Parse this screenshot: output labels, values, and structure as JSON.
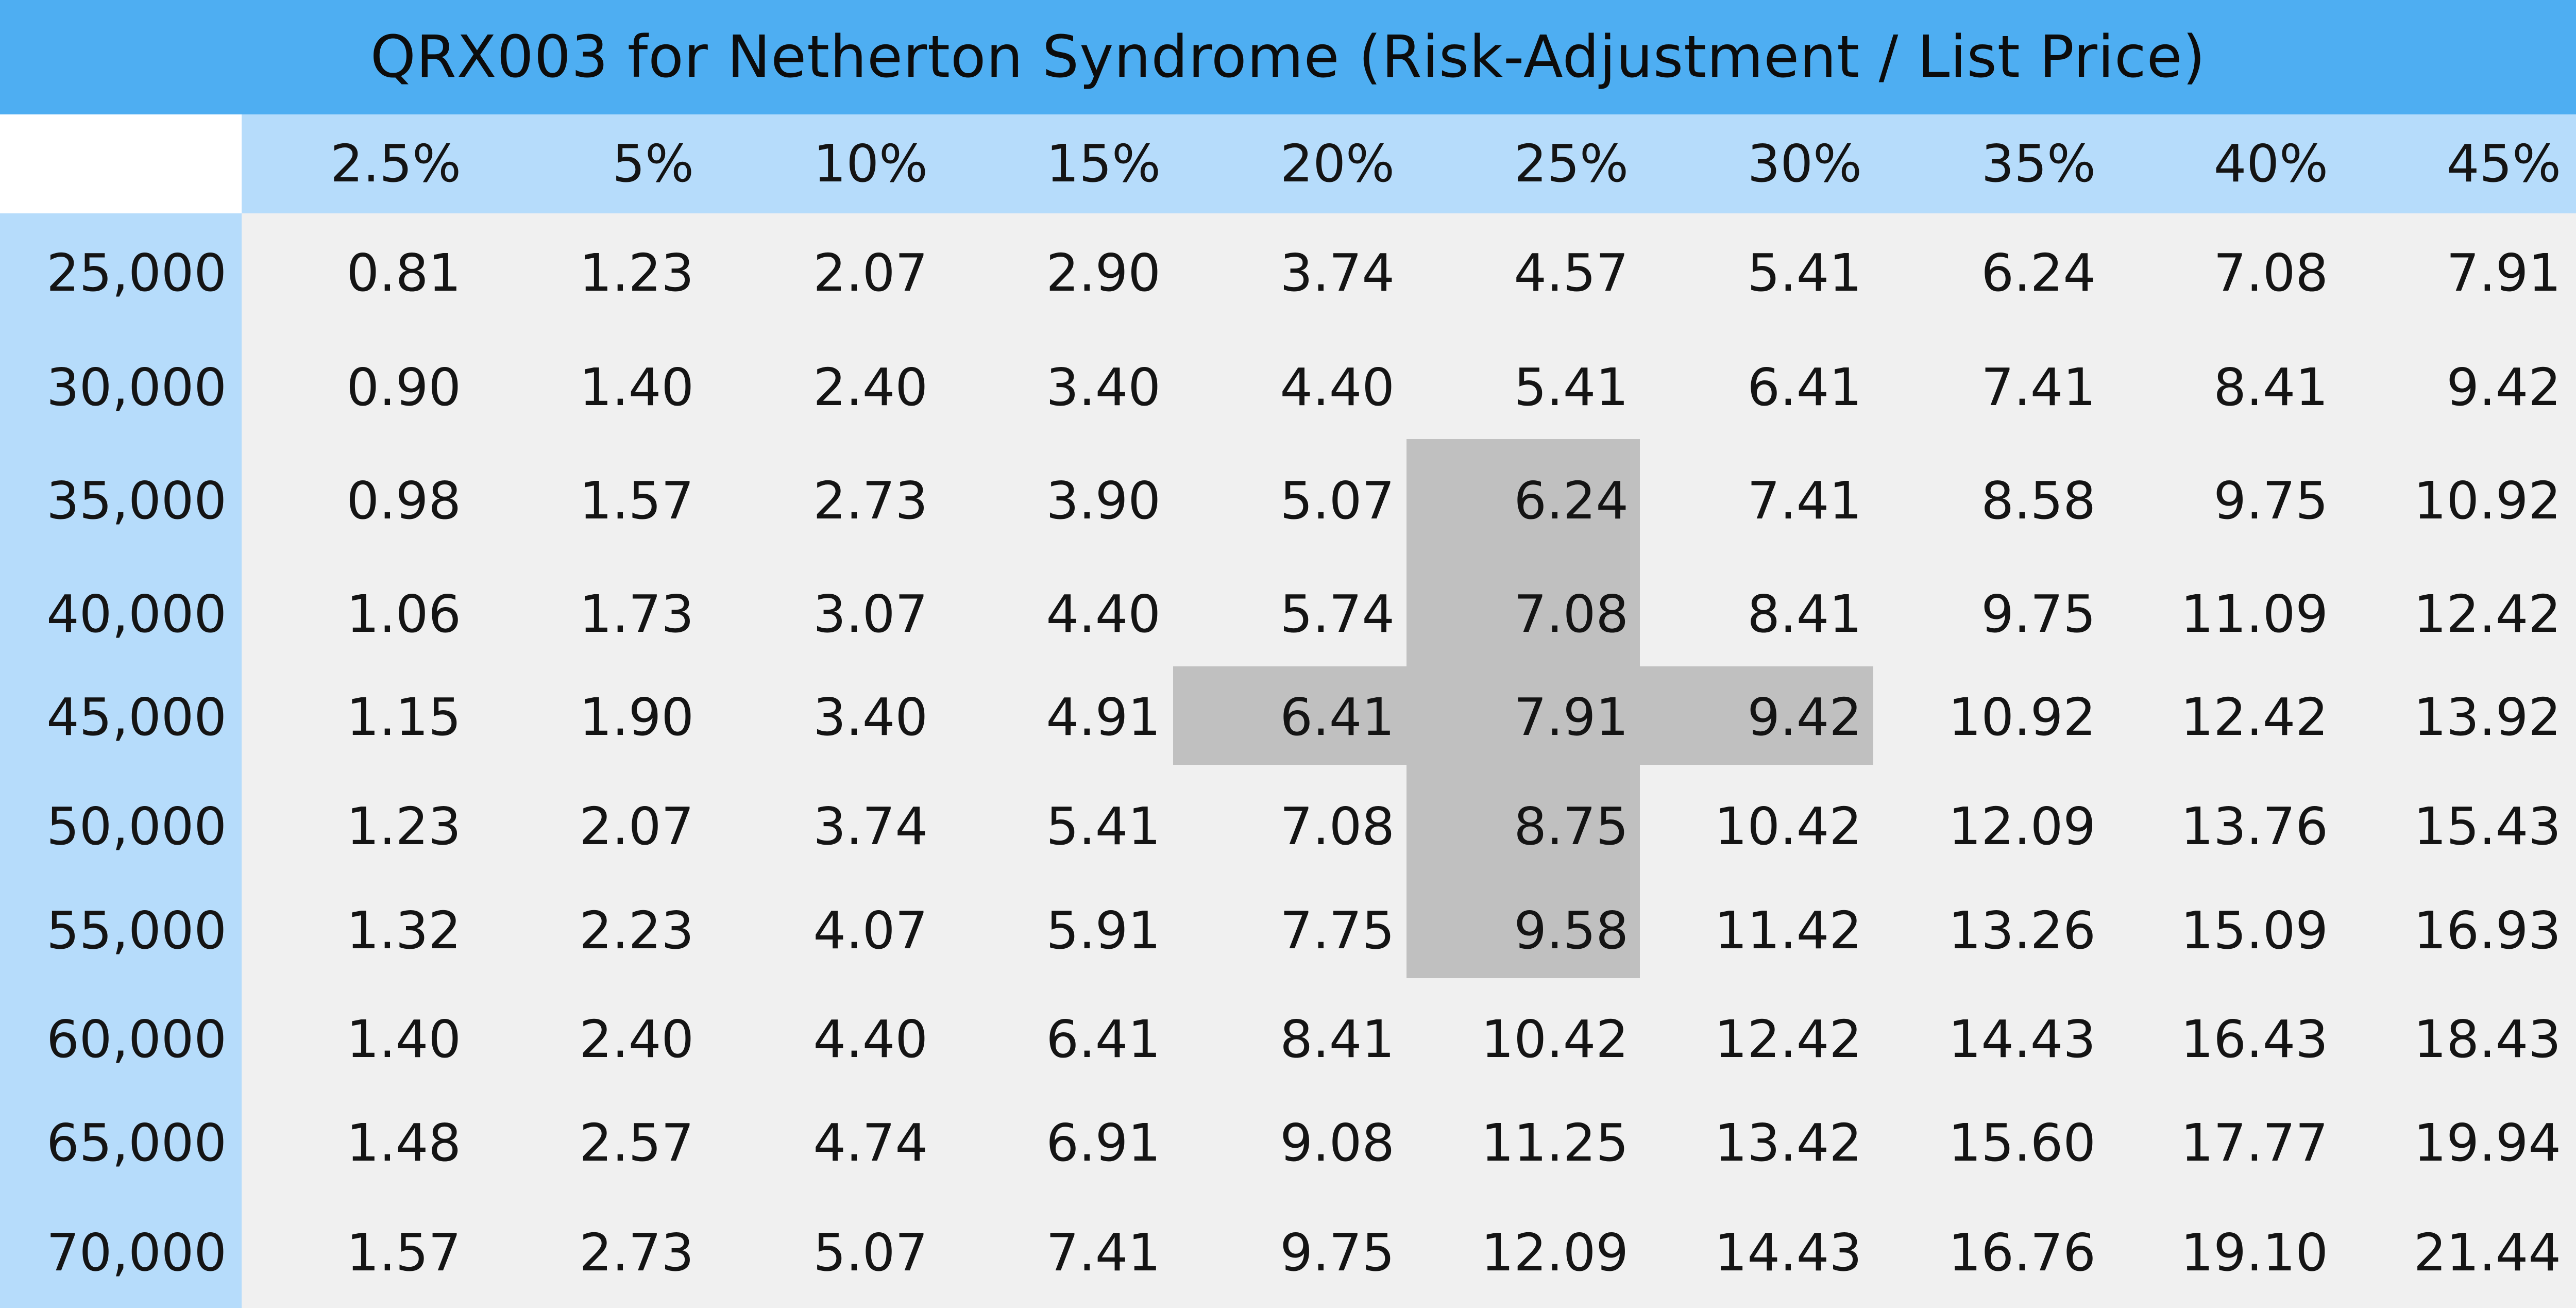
{
  "title": "QRX003 for Netherton Syndrome (Risk-Adjustment / List Price)",
  "colors": {
    "title_bar": "#4eaef2",
    "header_band": "#b6dcfb",
    "body": "#f0f0f0",
    "highlight": "#c0c0c0"
  },
  "chart_data": {
    "type": "table",
    "title": "QRX003 for Netherton Syndrome (Risk-Adjustment / List Price)",
    "columns": [
      "2.5%",
      "5%",
      "10%",
      "15%",
      "20%",
      "25%",
      "30%",
      "35%",
      "40%",
      "45%"
    ],
    "rows": [
      "25,000",
      "30,000",
      "35,000",
      "40,000",
      "45,000",
      "50,000",
      "55,000",
      "60,000",
      "65,000",
      "70,000"
    ],
    "values": [
      [
        "0.81",
        "1.23",
        "2.07",
        "2.90",
        "3.74",
        "4.57",
        "5.41",
        "6.24",
        "7.08",
        "7.91"
      ],
      [
        "0.90",
        "1.40",
        "2.40",
        "3.40",
        "4.40",
        "5.41",
        "6.41",
        "7.41",
        "8.41",
        "9.42"
      ],
      [
        "0.98",
        "1.57",
        "2.73",
        "3.90",
        "5.07",
        "6.24",
        "7.41",
        "8.58",
        "9.75",
        "10.92"
      ],
      [
        "1.06",
        "1.73",
        "3.07",
        "4.40",
        "5.74",
        "7.08",
        "8.41",
        "9.75",
        "11.09",
        "12.42"
      ],
      [
        "1.15",
        "1.90",
        "3.40",
        "4.91",
        "6.41",
        "7.91",
        "9.42",
        "10.92",
        "12.42",
        "13.92"
      ],
      [
        "1.23",
        "2.07",
        "3.74",
        "5.41",
        "7.08",
        "8.75",
        "10.42",
        "12.09",
        "13.76",
        "15.43"
      ],
      [
        "1.32",
        "2.23",
        "4.07",
        "5.91",
        "7.75",
        "9.58",
        "11.42",
        "13.26",
        "15.09",
        "16.93"
      ],
      [
        "1.40",
        "2.40",
        "4.40",
        "6.41",
        "8.41",
        "10.42",
        "12.42",
        "14.43",
        "16.43",
        "18.43"
      ],
      [
        "1.48",
        "2.57",
        "4.74",
        "6.91",
        "9.08",
        "11.25",
        "13.42",
        "15.60",
        "17.77",
        "19.94"
      ],
      [
        "1.57",
        "2.73",
        "5.07",
        "7.41",
        "9.75",
        "12.09",
        "14.43",
        "16.76",
        "19.10",
        "21.44"
      ]
    ],
    "highlighted_cells": [
      [
        2,
        5
      ],
      [
        3,
        5
      ],
      [
        4,
        4
      ],
      [
        4,
        5
      ],
      [
        4,
        6
      ],
      [
        5,
        5
      ],
      [
        6,
        5
      ]
    ]
  }
}
